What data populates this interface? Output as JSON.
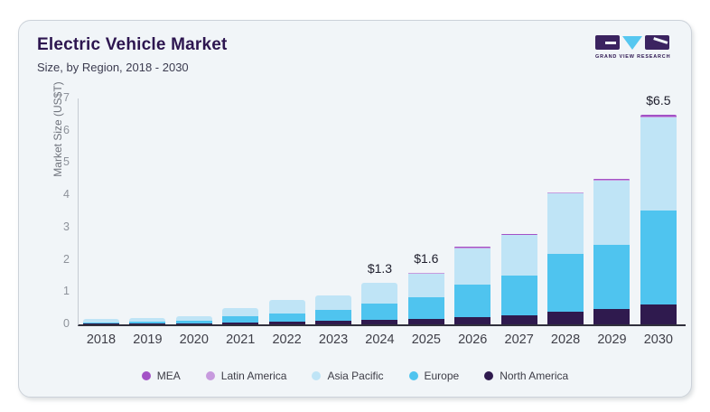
{
  "header": {
    "title": "Electric Vehicle Market",
    "subtitle": "Size, by Region, 2018 - 2030"
  },
  "logo": {
    "name": "grand-view-research",
    "text": "GRAND VIEW RESEARCH",
    "dark_color": "#3b2360",
    "blue_color": "#56c7f0"
  },
  "chart_data": {
    "type": "bar",
    "stacked": true,
    "title": "Electric Vehicle Market Size, by Region, 2018 - 2030",
    "ylabel": "Market Size (US$T)",
    "ylim": [
      0,
      7
    ],
    "yticks": [
      0,
      1,
      2,
      3,
      4,
      5,
      6,
      7
    ],
    "grid": false,
    "legend_position": "bottom",
    "categories": [
      "2018",
      "2019",
      "2020",
      "2021",
      "2022",
      "2023",
      "2024",
      "2025",
      "2026",
      "2027",
      "2028",
      "2029",
      "2030"
    ],
    "series": [
      {
        "name": "North America",
        "color": "#2f1a4e",
        "values": [
          0.02,
          0.02,
          0.03,
          0.06,
          0.08,
          0.12,
          0.15,
          0.18,
          0.22,
          0.28,
          0.38,
          0.47,
          0.62
        ]
      },
      {
        "name": "Europe",
        "color": "#4fc4ef",
        "values": [
          0.05,
          0.06,
          0.08,
          0.2,
          0.27,
          0.33,
          0.5,
          0.66,
          1.0,
          1.23,
          1.8,
          1.99,
          2.92
        ]
      },
      {
        "name": "Asia Pacific",
        "color": "#bfe4f6",
        "values": [
          0.1,
          0.11,
          0.14,
          0.24,
          0.4,
          0.45,
          0.65,
          0.74,
          1.14,
          1.25,
          1.88,
          1.98,
          2.86
        ]
      },
      {
        "name": "Latin America",
        "color": "#c79ade",
        "values": [
          0.0,
          0.0,
          0.0,
          0.0,
          0.0,
          0.0,
          0.0,
          0.01,
          0.02,
          0.02,
          0.02,
          0.03,
          0.05
        ]
      },
      {
        "name": "MEA",
        "color": "#a352c6",
        "values": [
          0.0,
          0.0,
          0.0,
          0.0,
          0.0,
          0.0,
          0.0,
          0.01,
          0.02,
          0.02,
          0.02,
          0.03,
          0.05
        ]
      }
    ],
    "totals": [
      0.17,
      0.19,
      0.25,
      0.5,
      0.75,
      0.9,
      1.3,
      1.6,
      2.4,
      2.8,
      4.1,
      4.5,
      6.5
    ],
    "bar_labels": {
      "2024": "$1.3",
      "2025": "$1.6",
      "2030": "$6.5"
    },
    "legend": [
      "MEA",
      "Latin America",
      "Asia Pacific",
      "Europe",
      "North America"
    ]
  }
}
